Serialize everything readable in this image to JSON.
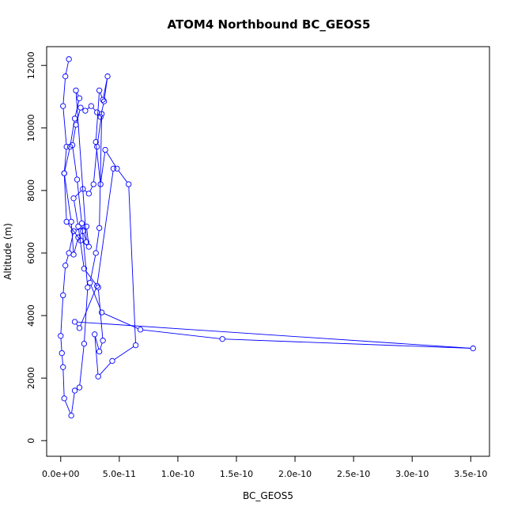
{
  "chart_data": {
    "type": "line",
    "title": "ATOM4 Northbound BC_GEOS5",
    "xlabel": "BC_GEOS5",
    "ylabel": "Altitude (m)",
    "xlim": [
      -1.2e-11,
      3.66e-10
    ],
    "ylim": [
      -500,
      12600
    ],
    "x_ticks": [
      0,
      5e-11,
      1e-10,
      1.5e-10,
      2e-10,
      2.5e-10,
      3e-10,
      3.5e-10
    ],
    "x_tick_labels": [
      "0.0e+00",
      "5.0e-11",
      "1.0e-10",
      "1.5e-10",
      "2.0e-10",
      "2.5e-10",
      "3.0e-10",
      "3.5e-10"
    ],
    "y_ticks": [
      0,
      2000,
      4000,
      6000,
      8000,
      10000,
      12000
    ],
    "y_tick_labels": [
      "0",
      "2000",
      "4000",
      "6000",
      "8000",
      "10000",
      "12000"
    ],
    "grid": false,
    "line_color": "#0000ff",
    "marker": "open-circle",
    "x": [
      7e-12,
      4e-12,
      2e-12,
      5e-12,
      3e-12,
      9e-12,
      1.1e-11,
      1.5e-11,
      1.9e-11,
      2.2e-11,
      1.3e-11,
      1.6e-11,
      1.2e-11,
      8e-12,
      3e-12,
      5e-12,
      1.7e-11,
      2.4e-11,
      2.2e-11,
      1.1e-11,
      7e-12,
      4e-12,
      2e-12,
      0.0,
      1e-12,
      2e-12,
      3e-12,
      9e-12,
      1.2e-11,
      1.6e-11,
      2e-11,
      2.3e-11,
      1.8e-11,
      1.4e-11,
      1e-11,
      1.3e-11,
      1.7e-11,
      2.1e-11,
      2.6e-11,
      3.1e-11,
      3.4e-11,
      3.7e-11,
      4e-11,
      3.6e-11,
      3.3e-11,
      3e-11,
      3.4e-11,
      3.8e-11,
      4.8e-11,
      5.8e-11,
      6.4e-11,
      4.4e-11,
      3.2e-11,
      2.9e-11,
      3.3e-11,
      3.6e-11,
      3.2e-11,
      2e-11,
      1.5e-11,
      1.1e-11,
      1.9e-11,
      2.4e-11,
      2.8e-11,
      3.1e-11,
      3.5e-11,
      3.3e-11,
      3e-11,
      2.5e-11,
      3.5e-11,
      6.8e-11,
      1.38e-10,
      3.52e-10,
      1.2e-11,
      1.6e-11,
      3.1e-11,
      4.5e-11
    ],
    "y": [
      12200,
      11650,
      10700,
      9400,
      8550,
      7000,
      5950,
      6500,
      6700,
      6350,
      11200,
      10950,
      10300,
      9400,
      8550,
      7000,
      6400,
      6200,
      6850,
      6700,
      6000,
      5600,
      4650,
      3350,
      2800,
      2350,
      1350,
      800,
      1600,
      1700,
      3100,
      4900,
      6950,
      8350,
      9450,
      10100,
      10650,
      10550,
      10700,
      10500,
      10350,
      10850,
      11650,
      10900,
      11200,
      9550,
      8200,
      9300,
      8700,
      8200,
      3050,
      2550,
      2050,
      3400,
      2850,
      3200,
      4900,
      5500,
      6850,
      7750,
      8050,
      7900,
      8200,
      9400,
      10450,
      6800,
      6000,
      5050,
      4100,
      3550,
      3250,
      2950,
      3800,
      3600,
      4950,
      8700
    ]
  }
}
